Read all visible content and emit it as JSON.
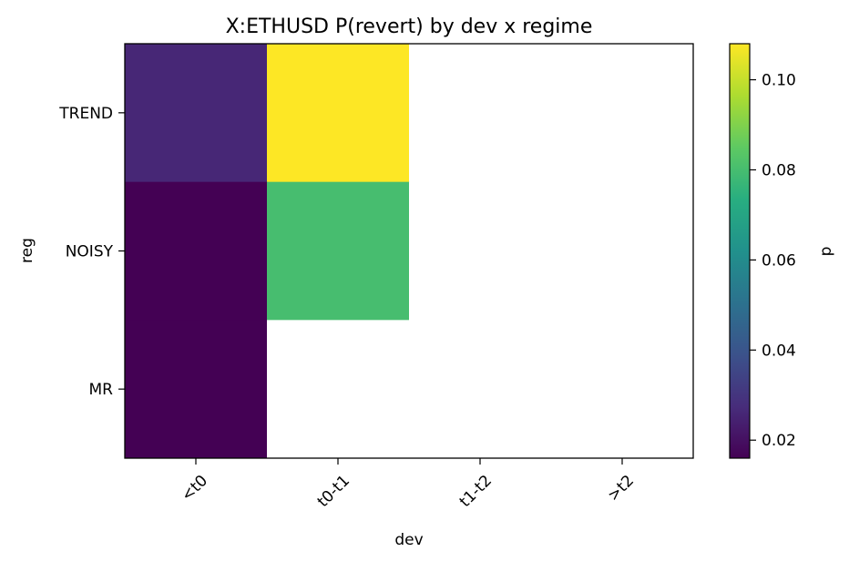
{
  "chart_data": {
    "type": "heatmap",
    "title": "X:ETHUSD P(revert) by dev x regime",
    "xlabel": "dev",
    "ylabel": "reg",
    "x_categories": [
      "<t0",
      "t0-t1",
      "t1-t2",
      ">t2"
    ],
    "y_categories": [
      "TREND",
      "NOISY",
      "MR"
    ],
    "values": [
      [
        0.026,
        0.108,
        null,
        null
      ],
      [
        0.016,
        0.08,
        null,
        null
      ],
      [
        0.016,
        null,
        null,
        null
      ]
    ],
    "colorbar": {
      "label": "p",
      "min": 0.016,
      "max": 0.108,
      "ticks": [
        "0.02",
        "0.04",
        "0.06",
        "0.08",
        "0.10"
      ],
      "tick_values": [
        0.02,
        0.04,
        0.06,
        0.08,
        0.1
      ],
      "colormap": "viridis"
    },
    "missing_color": "#ffffff"
  }
}
